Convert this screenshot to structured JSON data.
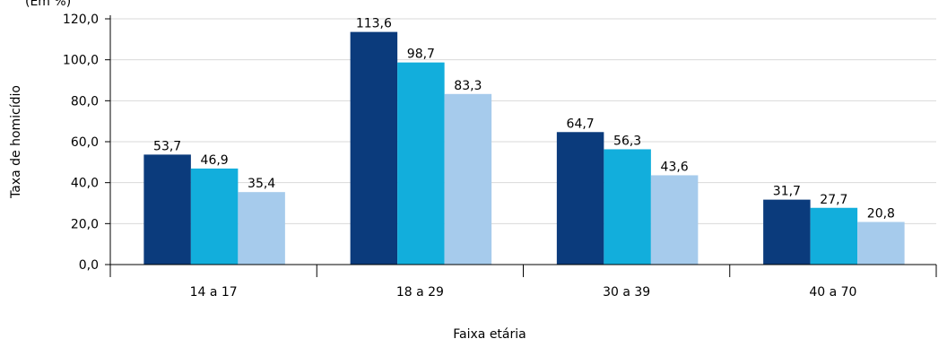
{
  "chart_data": {
    "type": "bar",
    "title": "",
    "unit_label": "(Em %)",
    "xlabel": "Faixa etária",
    "ylabel": "Taxa de homicídio",
    "categories": [
      "14 a 17",
      "18 a 29",
      "30 a 39",
      "40 a 70"
    ],
    "y_ticks": [
      "0,0",
      "20,0",
      "40,0",
      "60,0",
      "80,0",
      "100,0",
      "120,0"
    ],
    "ylim": [
      0,
      120
    ],
    "grid": true,
    "series": [
      {
        "values": [
          53.7,
          113.6,
          64.7,
          31.7
        ],
        "labels": [
          "53,7",
          "113,6",
          "64,7",
          "31,7"
        ],
        "color": "#0b3b7c"
      },
      {
        "values": [
          46.9,
          98.7,
          56.3,
          27.7
        ],
        "labels": [
          "46,9",
          "98,7",
          "56,3",
          "27,7"
        ],
        "color": "#12aedc"
      },
      {
        "values": [
          35.4,
          83.3,
          43.6,
          20.8
        ],
        "labels": [
          "35,4",
          "83,3",
          "43,6",
          "20,8"
        ],
        "color": "#a6cbec"
      }
    ]
  }
}
